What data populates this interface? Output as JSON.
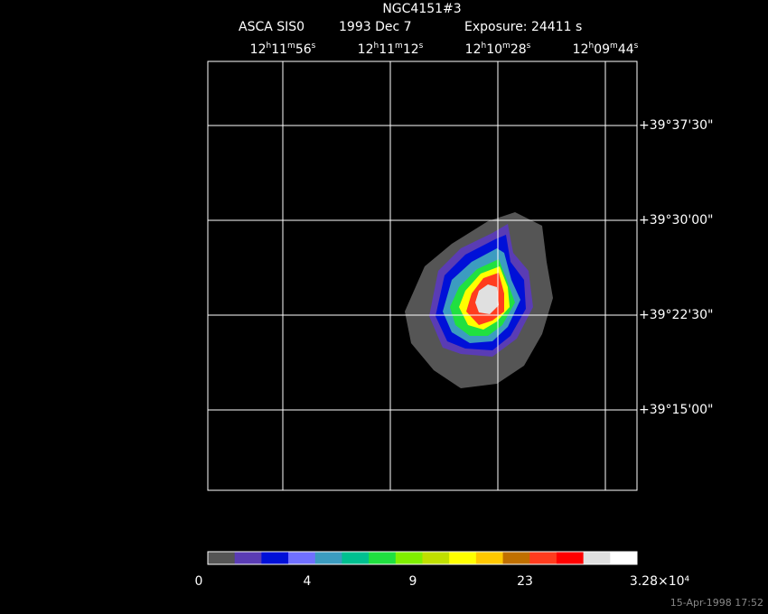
{
  "title": "NGC4151#3",
  "subtitle": {
    "instrument": "ASCA SIS0",
    "date": "1993 Dec  7",
    "exposure": "Exposure: 24411 s"
  },
  "ra_labels": [
    "12h11m56s",
    "12h11m12s",
    "12h10m28s",
    "12h09m44s"
  ],
  "dec_labels": [
    "+39°37'30\"",
    "+39°30'00\"",
    "+39°22'30\"",
    "+39°15'00\""
  ],
  "colorbar": {
    "colors": [
      "#555555",
      "#5a3cb4",
      "#0010d8",
      "#7070ff",
      "#3c9cc0",
      "#00c090",
      "#20e040",
      "#80f000",
      "#c0e000",
      "#ffff00",
      "#ffc800",
      "#c07000",
      "#ff3c1e",
      "#ff0000",
      "#e0e0e0",
      "#ffffff"
    ],
    "labels": [
      "0",
      "4",
      "9",
      "23",
      "3.28×10⁴"
    ]
  },
  "timestamp": "15-Apr-1998 17:52"
}
